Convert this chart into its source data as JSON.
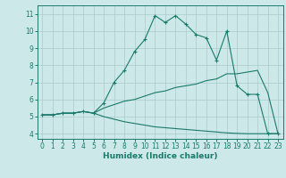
{
  "xlabel": "Humidex (Indice chaleur)",
  "bg_color": "#cce8e8",
  "grid_color": "#aacccc",
  "line_color": "#1a7a6a",
  "xlim": [
    -0.5,
    23.5
  ],
  "ylim": [
    3.7,
    11.5
  ],
  "xticks": [
    0,
    1,
    2,
    3,
    4,
    5,
    6,
    7,
    8,
    9,
    10,
    11,
    12,
    13,
    14,
    15,
    16,
    17,
    18,
    19,
    20,
    21,
    22,
    23
  ],
  "yticks": [
    4,
    5,
    6,
    7,
    8,
    9,
    10,
    11
  ],
  "line1_x": [
    0,
    1,
    2,
    3,
    4,
    5,
    6,
    7,
    8,
    9,
    10,
    11,
    12,
    13,
    14,
    15,
    16,
    17,
    18,
    19,
    20,
    21,
    22,
    23
  ],
  "line1_y": [
    5.1,
    5.1,
    5.2,
    5.2,
    5.3,
    5.2,
    5.8,
    7.0,
    7.7,
    8.8,
    9.5,
    10.9,
    10.5,
    10.9,
    10.4,
    9.8,
    9.6,
    8.3,
    10.0,
    6.8,
    6.3,
    6.3,
    4.0,
    4.0
  ],
  "line2_x": [
    0,
    1,
    2,
    3,
    4,
    5,
    6,
    7,
    8,
    9,
    10,
    11,
    12,
    13,
    14,
    15,
    16,
    17,
    18,
    19,
    20,
    21,
    22,
    23
  ],
  "line2_y": [
    5.1,
    5.1,
    5.2,
    5.2,
    5.3,
    5.2,
    5.5,
    5.7,
    5.9,
    6.0,
    6.2,
    6.4,
    6.5,
    6.7,
    6.8,
    6.9,
    7.1,
    7.2,
    7.5,
    7.5,
    7.6,
    7.7,
    6.4,
    4.0
  ],
  "line3_x": [
    0,
    1,
    2,
    3,
    4,
    5,
    6,
    7,
    8,
    9,
    10,
    11,
    12,
    13,
    14,
    15,
    16,
    17,
    18,
    19,
    20,
    21,
    22,
    23
  ],
  "line3_y": [
    5.1,
    5.1,
    5.2,
    5.2,
    5.3,
    5.2,
    5.0,
    4.85,
    4.7,
    4.6,
    4.5,
    4.4,
    4.35,
    4.3,
    4.25,
    4.2,
    4.15,
    4.1,
    4.05,
    4.02,
    4.0,
    4.0,
    4.0,
    4.0
  ]
}
